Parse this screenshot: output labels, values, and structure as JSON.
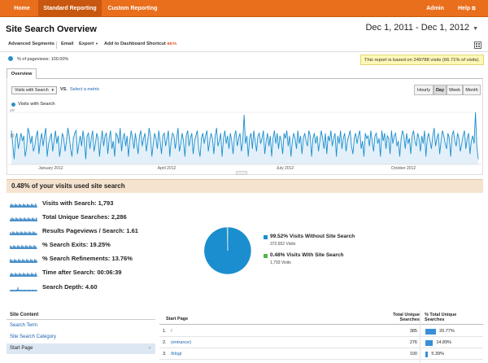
{
  "nav": {
    "tabs": [
      {
        "label": "Home"
      },
      {
        "label": "Standard Reporting"
      },
      {
        "label": "Custom Reporting"
      }
    ],
    "admin": "Admin",
    "help": "Help"
  },
  "header": {
    "title": "Site Search Overview",
    "date_range": "Dec 1, 2011 - Dec 1, 2012"
  },
  "toolbar": {
    "advanced_segments": "Advanced Segments",
    "email": "Email",
    "export": "Export",
    "add_to_dashboard": "Add to Dashboard",
    "shortcut": "Shortcut",
    "beta": "BETA"
  },
  "segment": {
    "label": "% of pageviews: 100.00%",
    "notice": "This report is based on 249788 visits (66.71% of visits)."
  },
  "tabs": {
    "overview": "Overview"
  },
  "chart_controls": {
    "metric": "Visits with Search",
    "vs": "VS.",
    "select_metric": "Select a metric",
    "granularity": [
      "Hourly",
      "Day",
      "Week",
      "Month"
    ],
    "selected_granularity": "Day"
  },
  "chart_data": {
    "type": "area",
    "series_name": "Visits with Search",
    "ylim": [
      0,
      20
    ],
    "yticks": [
      "20",
      "10"
    ],
    "xticks": [
      "January 2012",
      "April 2012",
      "July 2012",
      "October 2012"
    ],
    "values": [
      13,
      8,
      2,
      10,
      12,
      6,
      9,
      12,
      9,
      11,
      3,
      6,
      14,
      12,
      8,
      11,
      5,
      7,
      11,
      13,
      4,
      9,
      12,
      7,
      11,
      14,
      3,
      8,
      10,
      12,
      5,
      9,
      13,
      8,
      11,
      3,
      7,
      12,
      10,
      5,
      9,
      14,
      11,
      6,
      3,
      10,
      12,
      13,
      4,
      8,
      11,
      7,
      13,
      9,
      2,
      11,
      12,
      6,
      10,
      13,
      5,
      8,
      12,
      10,
      3,
      9,
      13,
      7,
      11,
      12,
      4,
      10,
      13,
      6,
      9,
      3,
      12,
      11,
      8,
      14,
      5,
      10,
      12,
      7,
      11,
      3,
      9,
      13,
      10,
      6,
      12,
      8,
      4,
      11,
      13,
      7,
      10,
      12,
      5,
      9,
      14,
      11,
      3,
      8,
      12,
      10,
      6,
      13,
      9,
      4,
      11,
      12,
      7,
      10,
      13,
      3,
      9,
      12,
      11,
      6,
      10,
      14,
      5,
      8,
      12,
      9,
      3,
      11,
      13,
      7,
      10,
      12,
      4,
      9,
      11,
      13,
      6,
      3,
      10,
      12,
      8,
      11,
      13,
      5,
      9,
      12,
      10,
      4,
      11,
      14,
      7,
      9,
      12,
      3,
      10,
      13,
      8,
      11,
      6,
      12,
      9,
      4,
      11,
      13,
      7,
      10,
      12,
      5,
      9,
      19,
      8,
      11,
      3,
      10,
      12,
      6,
      13,
      9,
      5,
      11,
      12,
      8,
      10,
      13,
      4,
      9,
      12,
      7,
      11,
      3,
      10,
      13,
      8,
      12,
      6,
      11,
      9,
      4,
      12,
      10,
      13,
      7,
      11,
      3,
      9,
      12,
      10,
      6,
      13,
      8,
      11,
      4,
      10,
      12,
      9,
      7,
      13,
      11,
      3,
      10,
      12,
      8,
      11,
      5,
      9,
      13,
      10,
      6,
      12,
      4,
      11,
      9,
      13,
      7,
      10,
      12,
      3,
      11,
      8,
      13,
      6,
      10,
      12,
      5,
      9,
      11,
      13,
      7,
      4,
      10,
      12,
      8,
      11,
      13,
      6,
      9,
      3,
      12,
      10,
      11,
      7,
      13,
      9,
      5,
      11,
      12,
      8,
      10,
      3,
      13,
      9,
      12,
      6,
      11,
      10,
      4,
      13,
      8,
      11,
      12,
      7,
      9,
      3,
      10,
      13,
      11,
      6,
      12,
      8,
      10,
      4,
      11,
      13,
      9,
      7,
      12,
      10,
      5,
      11,
      8,
      13,
      3,
      10,
      12,
      9,
      6,
      11,
      14,
      7,
      10,
      12,
      4,
      9,
      13,
      11,
      8,
      6,
      12,
      10,
      3,
      11,
      13,
      9,
      7,
      12,
      10,
      5,
      8,
      11,
      13,
      6,
      10,
      12,
      4,
      9,
      11,
      8,
      20,
      7,
      2
    ]
  },
  "summary": {
    "title": "0.48% of your visits used site search",
    "metrics": [
      {
        "label": "Visits with Search: 1,793"
      },
      {
        "label": "Total Unique Searches: 2,286"
      },
      {
        "label": "Results Pageviews / Search: 1.61"
      },
      {
        "label": "% Search Exits: 19.25%"
      },
      {
        "label": "% Search Refinements: 13.76%"
      },
      {
        "label": "Time after Search: 00:06:39"
      },
      {
        "label": "Search Depth: 4.60"
      }
    ]
  },
  "pie": {
    "slices": [
      {
        "label": "99.52% Visits Without Site Search",
        "sub": "372,652 Visits",
        "value": 99.52,
        "color": "#1b8ecf"
      },
      {
        "label": "0.48% Visits With Site Search",
        "sub": "1,793 Visits",
        "value": 0.48,
        "color": "#59b152"
      }
    ]
  },
  "sidenav": {
    "heading": "Site Content",
    "items": [
      {
        "label": "Search Term"
      },
      {
        "label": "Site Search Category"
      },
      {
        "label": "Start Page"
      }
    ],
    "chevron": "›"
  },
  "table": {
    "col_page": "Start Page",
    "col_searches_1": "Total Unique",
    "col_searches_2": "Searches",
    "col_pct_1": "% Total Unique",
    "col_pct_2": "Searches",
    "rows": [
      {
        "idx": "1.",
        "page": "/",
        "value": "385",
        "pct": "20.77%",
        "fraction": 0.2077
      },
      {
        "idx": "2.",
        "page": "(entrance)",
        "value": "276",
        "pct": "14.89%",
        "fraction": 0.1489
      },
      {
        "idx": "3.",
        "page": "/blog/",
        "value": "100",
        "pct": "5.39%",
        "fraction": 0.0539
      }
    ]
  }
}
